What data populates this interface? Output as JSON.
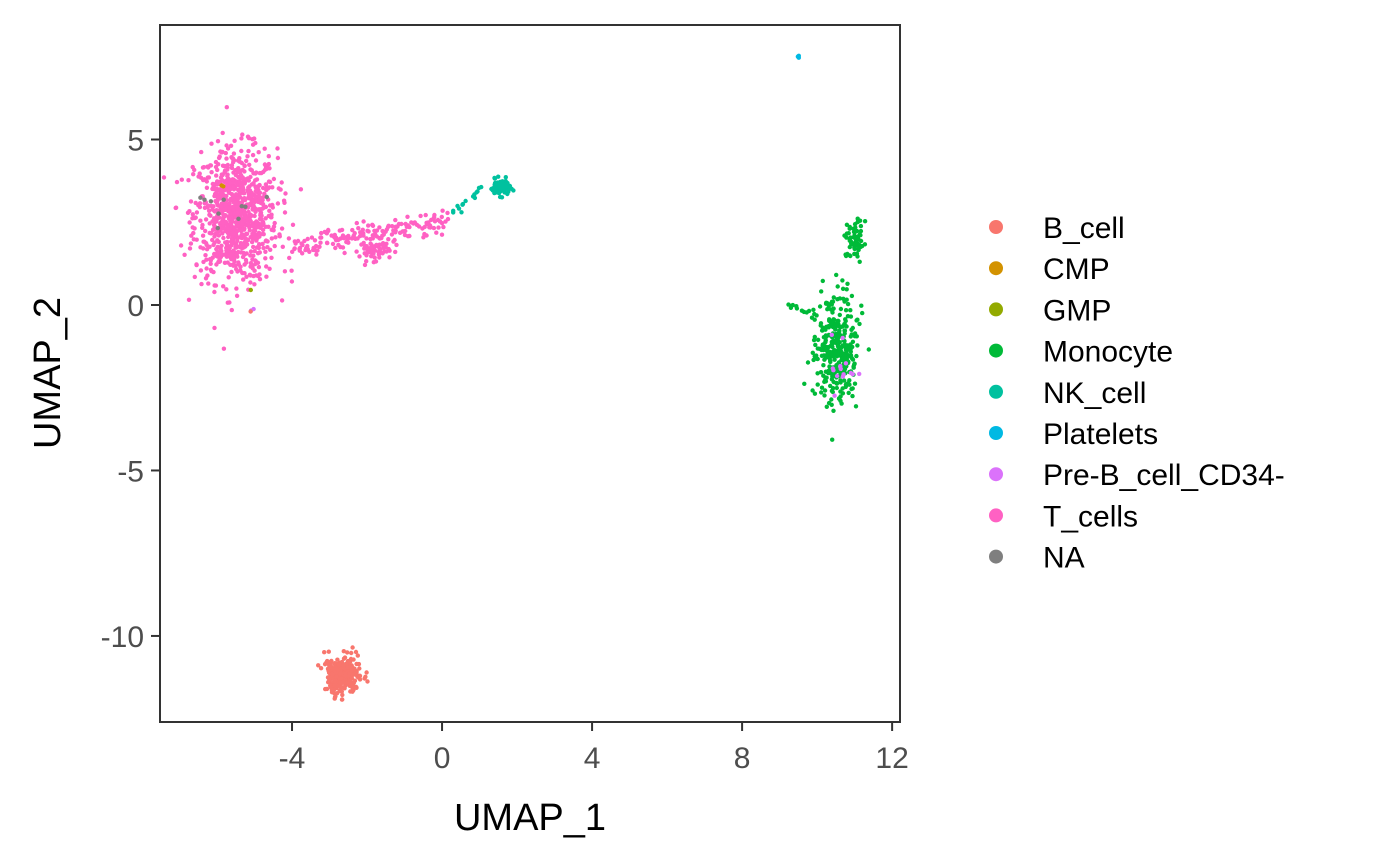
{
  "chart_data": {
    "type": "scatter",
    "title": "",
    "xlabel": "UMAP_1",
    "ylabel": "UMAP_2",
    "xlim": [
      -7.52,
      12.21
    ],
    "ylim": [
      -12.6,
      8.46
    ],
    "xticks": [
      -4,
      0,
      4,
      8,
      12
    ],
    "yticks": [
      5,
      0,
      -5,
      -10
    ],
    "grid": false,
    "legend_position": "right",
    "legend": [
      {
        "label": "B_cell",
        "color": "#F8766D"
      },
      {
        "label": "CMP",
        "color": "#D39200"
      },
      {
        "label": "GMP",
        "color": "#93AA00"
      },
      {
        "label": "Monocyte",
        "color": "#00BA38"
      },
      {
        "label": "NK_cell",
        "color": "#00C19F"
      },
      {
        "label": "Platelets",
        "color": "#00B9E3"
      },
      {
        "label": "Pre-B_cell_CD34-",
        "color": "#DB72FB"
      },
      {
        "label": "T_cells",
        "color": "#FF61C3"
      },
      {
        "label": "NA",
        "color": "#7F7F7F"
      }
    ],
    "clusters": [
      {
        "label": "T_cells",
        "kind": "blob",
        "center": [
          -5.5,
          2.7
        ],
        "sd": [
          0.55,
          1.0
        ],
        "n": 900
      },
      {
        "label": "T_cells",
        "kind": "line",
        "from": [
          -4.0,
          1.7
        ],
        "to": [
          0.2,
          2.6
        ],
        "jitter": 0.18,
        "n": 180
      },
      {
        "label": "T_cells",
        "kind": "blob",
        "center": [
          -1.8,
          1.65
        ],
        "sd": [
          0.2,
          0.15
        ],
        "n": 60
      },
      {
        "label": "NK_cell",
        "kind": "blob",
        "center": [
          1.55,
          3.55
        ],
        "sd": [
          0.13,
          0.12
        ],
        "n": 80
      },
      {
        "label": "NK_cell",
        "kind": "line",
        "from": [
          0.3,
          2.8
        ],
        "to": [
          1.2,
          3.6
        ],
        "jitter": 0.1,
        "n": 15
      },
      {
        "label": "Platelets",
        "kind": "blob",
        "center": [
          9.5,
          7.5
        ],
        "sd": [
          0.03,
          0.02
        ],
        "n": 3
      },
      {
        "label": "Monocyte",
        "kind": "blob",
        "center": [
          11.05,
          1.95
        ],
        "sd": [
          0.12,
          0.3
        ],
        "n": 60
      },
      {
        "label": "Monocyte",
        "kind": "blob",
        "center": [
          10.5,
          -1.4
        ],
        "sd": [
          0.28,
          0.85
        ],
        "n": 350
      },
      {
        "label": "Monocyte",
        "kind": "line",
        "from": [
          9.2,
          0.0
        ],
        "to": [
          10.0,
          -0.3
        ],
        "jitter": 0.06,
        "n": 12
      },
      {
        "label": "Pre-B_cell_CD34-",
        "kind": "blob",
        "center": [
          10.8,
          -2.0
        ],
        "sd": [
          0.25,
          0.4
        ],
        "n": 14
      },
      {
        "label": "B_cell",
        "kind": "blob",
        "center": [
          -2.64,
          -11.18
        ],
        "sd": [
          0.25,
          0.28
        ],
        "n": 300
      },
      {
        "label": "NA",
        "kind": "blob",
        "center": [
          -5.6,
          3.2
        ],
        "sd": [
          0.5,
          0.6
        ],
        "n": 10
      },
      {
        "label": "CMP",
        "kind": "blob",
        "center": [
          -5.9,
          3.6
        ],
        "sd": [
          0.05,
          0.02
        ],
        "n": 2
      },
      {
        "label": "GMP",
        "kind": "blob",
        "center": [
          -5.1,
          0.45
        ],
        "sd": [
          0.01,
          0.01
        ],
        "n": 1
      },
      {
        "label": "Pre-B_cell_CD34-",
        "kind": "blob",
        "center": [
          -5.05,
          -0.15
        ],
        "sd": [
          0.02,
          0.02
        ],
        "n": 2
      },
      {
        "label": "B_cell",
        "kind": "blob",
        "center": [
          -5.1,
          -0.2
        ],
        "sd": [
          0.01,
          0.01
        ],
        "n": 1
      }
    ]
  }
}
